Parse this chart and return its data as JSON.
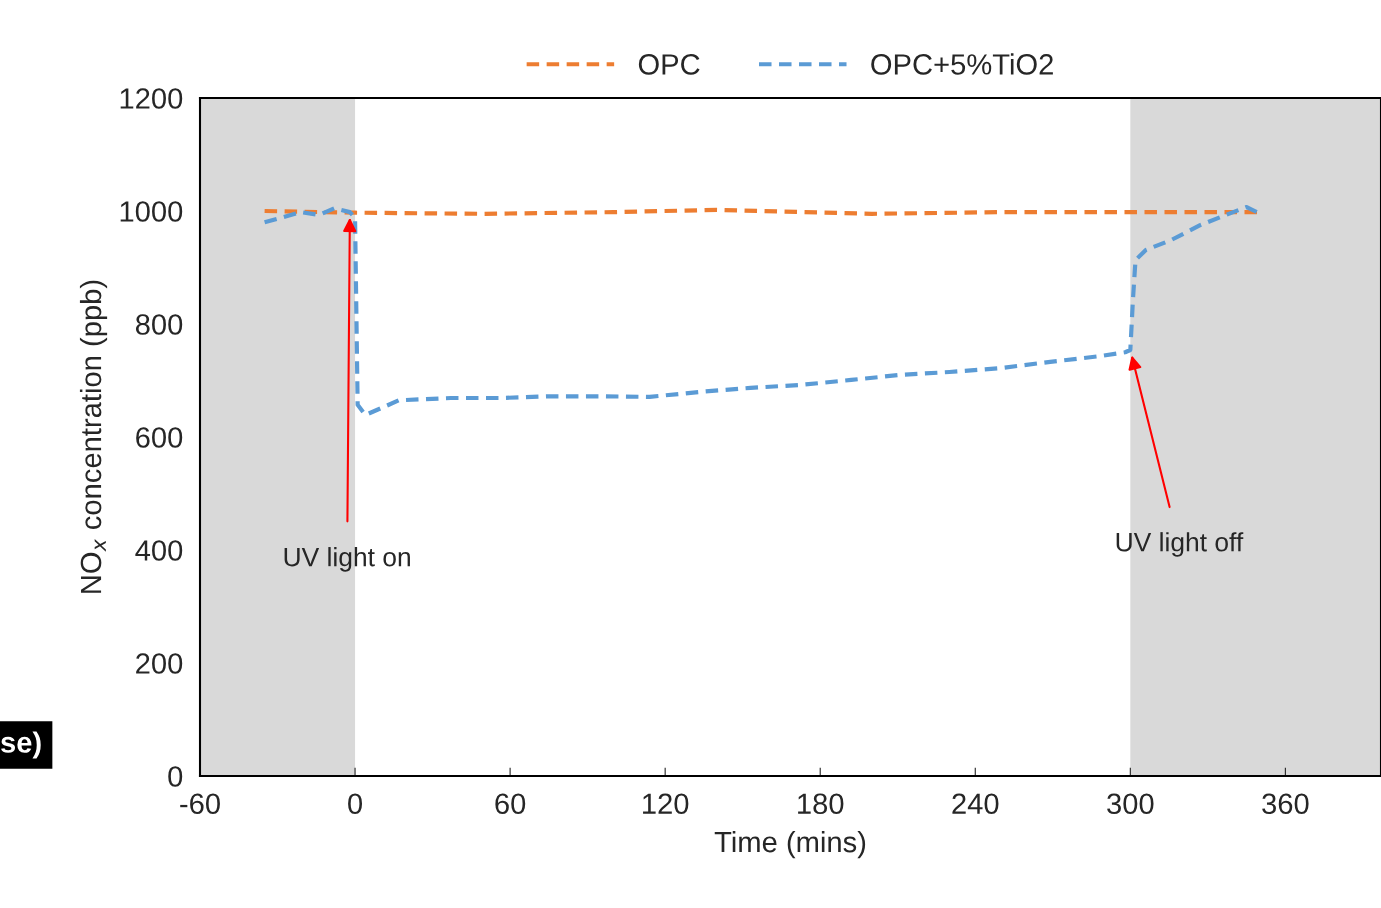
{
  "chart_data": {
    "type": "line",
    "xlabel": "Time (mins)",
    "ylabel": "NO$_{x}$ concentration (ppb)",
    "xlim": [
      -60,
      397
    ],
    "xticks": [
      -60,
      0,
      60,
      120,
      180,
      240,
      300,
      360
    ],
    "ylim": [
      0,
      1200
    ],
    "yticks": [
      0,
      200,
      400,
      600,
      800,
      1000,
      1200
    ],
    "grid": false,
    "legend": "top",
    "line_style": "dashed",
    "marker": "none",
    "series": [
      {
        "name": "OPC",
        "color": "#ed7d31",
        "x": [
          -35,
          0,
          50,
          100,
          140,
          200,
          250,
          300,
          349
        ],
        "values": [
          1000,
          997,
          995,
          998,
          1002,
          995,
          998,
          998,
          998
        ]
      },
      {
        "name": "OPC+5%TiO2",
        "color": "#5b9bd5",
        "x": [
          -35,
          -21,
          -14,
          -8,
          -2,
          0,
          1,
          4,
          17,
          37,
          56,
          75,
          95,
          114,
          134,
          153,
          172,
          192,
          211,
          230,
          250,
          269,
          288,
          298,
          300,
          301,
          302,
          306,
          316,
          327,
          337,
          345,
          349
        ],
        "values": [
          980,
          998,
          993,
          1005,
          998,
          988,
          657,
          639,
          665,
          669,
          669,
          672,
          672,
          671,
          680,
          687,
          692,
          701,
          710,
          715,
          722,
          733,
          743,
          750,
          754,
          842,
          913,
          931,
          949,
          975,
          993,
          1007,
          998
        ]
      }
    ],
    "bands": [
      {
        "axis": "x",
        "from": -60,
        "to": 0,
        "color": "#d9d9d9"
      },
      {
        "axis": "x",
        "from": 300,
        "to": 397,
        "color": "#d9d9d9"
      }
    ],
    "annotations": [
      {
        "text": "UV light on",
        "x": -2,
        "y": 998
      },
      {
        "text": "UV light off",
        "x": 300,
        "y": 754
      },
      "se)"
    ]
  }
}
